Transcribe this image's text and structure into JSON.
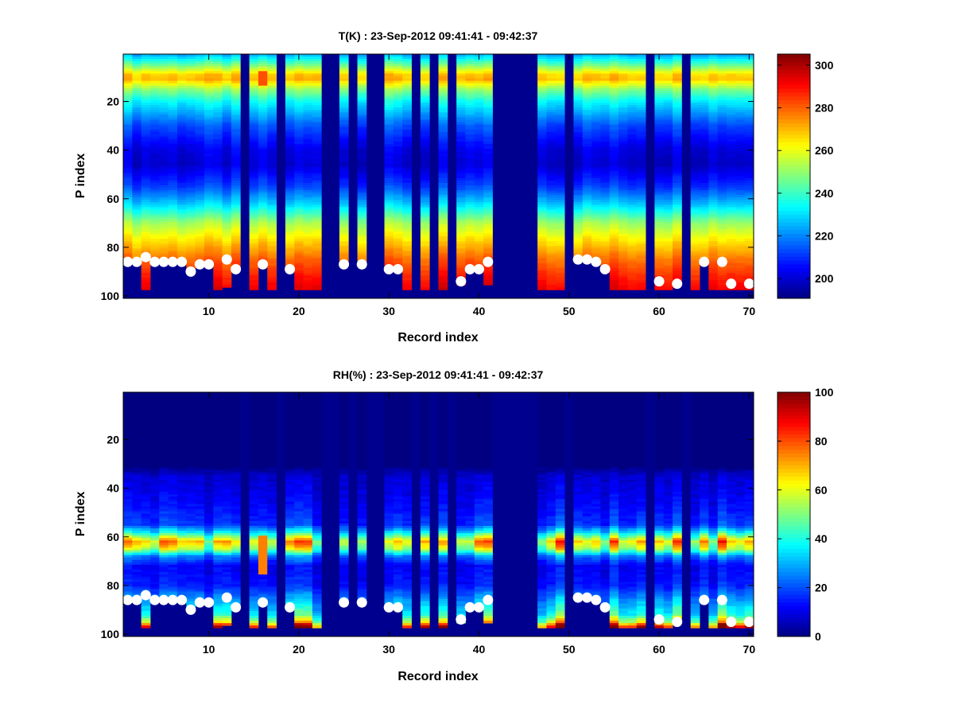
{
  "chart_data": [
    {
      "type": "heatmap",
      "title": "T(K) : 23-Sep-2012 09:41:41 - 09:42:37",
      "xlabel": "Record index",
      "ylabel": "P index",
      "xlim": [
        0.5,
        70.5
      ],
      "ylim": [
        0.5,
        101
      ],
      "y_reversed": true,
      "xticks": [
        10,
        20,
        30,
        40,
        50,
        60,
        70
      ],
      "yticks": [
        20,
        40,
        60,
        80,
        100
      ],
      "clim": [
        190.7,
        305.2
      ],
      "colorbar_ticks": [
        200,
        220,
        240,
        260,
        280,
        300
      ],
      "colormap": "jet",
      "profile_knots": [
        [
          1,
          226
        ],
        [
          5,
          246
        ],
        [
          9,
          268
        ],
        [
          11,
          270
        ],
        [
          15,
          250
        ],
        [
          20,
          234
        ],
        [
          30,
          214
        ],
        [
          40,
          202
        ],
        [
          46,
          200
        ],
        [
          55,
          212
        ],
        [
          62,
          228
        ],
        [
          70,
          252
        ],
        [
          78,
          267
        ],
        [
          85,
          279
        ],
        [
          92,
          288
        ],
        [
          97,
          293
        ]
      ],
      "variation": 4,
      "special": [
        {
          "record": 16,
          "p_from": 8,
          "p_to": 13,
          "value": 282
        }
      ]
    },
    {
      "type": "heatmap",
      "title": "RH(%) : 23-Sep-2012 09:41:41 - 09:42:37",
      "xlabel": "Record index",
      "ylabel": "P index",
      "xlim": [
        0.5,
        70.5
      ],
      "ylim": [
        0.5,
        101
      ],
      "y_reversed": true,
      "xticks": [
        10,
        20,
        30,
        40,
        50,
        60,
        70
      ],
      "yticks": [
        20,
        40,
        60,
        80,
        100
      ],
      "clim": [
        0,
        100
      ],
      "colorbar_ticks": [
        0,
        20,
        40,
        60,
        80,
        100
      ],
      "colormap": "jet",
      "profile_knots": [
        [
          1,
          0
        ],
        [
          31,
          0
        ],
        [
          35,
          8
        ],
        [
          45,
          12
        ],
        [
          55,
          18
        ],
        [
          58,
          35
        ],
        [
          62,
          68
        ],
        [
          65,
          55
        ],
        [
          68,
          25
        ],
        [
          72,
          12
        ],
        [
          80,
          15
        ],
        [
          86,
          28
        ],
        [
          92,
          40
        ],
        [
          95,
          60
        ],
        [
          97,
          92
        ]
      ],
      "variation": 0.3,
      "special": [
        {
          "record": 16,
          "p_from": 60,
          "p_to": 75,
          "value": 75
        }
      ]
    }
  ],
  "records": {
    "count": 70,
    "missing": [
      14,
      18,
      23,
      24,
      26,
      28,
      29,
      33,
      35,
      37,
      42,
      43,
      44,
      45,
      46,
      50,
      59,
      63
    ],
    "bottom_p": {
      "default": 97,
      "1": 86,
      "2": 86,
      "4": 86,
      "5": 86,
      "6": 86,
      "7": 86,
      "8": 90,
      "9": 87,
      "10": 87,
      "12": 96,
      "13": 89,
      "16": 87,
      "19": 89,
      "25": 87,
      "27": 87,
      "30": 89,
      "31": 89,
      "38": 95,
      "39": 89,
      "40": 89,
      "41": 95,
      "51": 85,
      "52": 85,
      "53": 86,
      "54": 89,
      "62": 95,
      "65": 86
    },
    "surface_markers": [
      [
        1,
        86
      ],
      [
        2,
        86
      ],
      [
        3,
        84
      ],
      [
        4,
        86
      ],
      [
        5,
        86
      ],
      [
        6,
        86
      ],
      [
        7,
        86
      ],
      [
        8,
        90
      ],
      [
        9,
        87
      ],
      [
        10,
        87
      ],
      [
        12,
        85
      ],
      [
        13,
        89
      ],
      [
        16,
        87
      ],
      [
        19,
        89
      ],
      [
        25,
        87
      ],
      [
        27,
        87
      ],
      [
        30,
        89
      ],
      [
        31,
        89
      ],
      [
        38,
        94
      ],
      [
        39,
        89
      ],
      [
        40,
        89
      ],
      [
        41,
        86
      ],
      [
        51,
        85
      ],
      [
        52,
        85
      ],
      [
        53,
        86
      ],
      [
        54,
        89
      ],
      [
        60,
        94
      ],
      [
        62,
        95
      ],
      [
        65,
        86
      ],
      [
        67,
        86
      ],
      [
        68,
        95
      ],
      [
        70,
        95
      ]
    ]
  },
  "colors": {
    "nan": "#00008F",
    "marker": "#FFFFFF"
  }
}
